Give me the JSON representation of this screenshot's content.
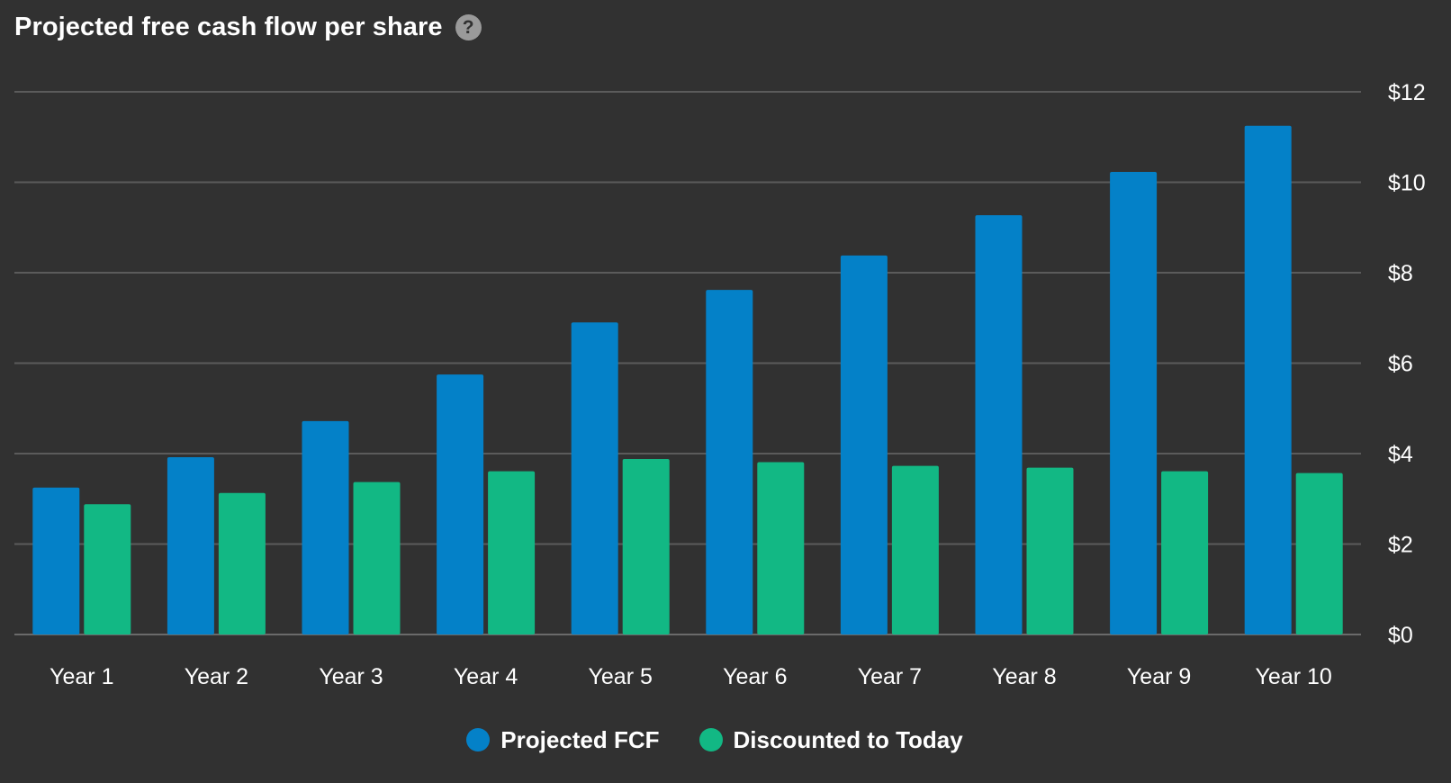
{
  "header": {
    "title": "Projected free cash flow per share",
    "help_icon": "question-circle-icon",
    "help_glyph": "?"
  },
  "colors": {
    "background": "#313131",
    "gridline": "#5b5b5b",
    "projected": "#0481c8",
    "discounted": "#12b884"
  },
  "legend": {
    "items": [
      {
        "label": "Projected FCF",
        "color": "#0481c8"
      },
      {
        "label": "Discounted to Today",
        "color": "#12b884"
      }
    ]
  },
  "chart_data": {
    "type": "bar",
    "categories": [
      "Year 1",
      "Year 2",
      "Year 3",
      "Year 4",
      "Year 5",
      "Year 6",
      "Year 7",
      "Year 8",
      "Year 9",
      "Year 10"
    ],
    "series": [
      {
        "name": "Projected FCF",
        "color": "#0481c8",
        "values": [
          3.25,
          3.92,
          4.72,
          5.75,
          6.9,
          7.62,
          8.38,
          9.27,
          10.23,
          11.25
        ]
      },
      {
        "name": "Discounted to Today",
        "color": "#12b884",
        "values": [
          2.88,
          3.13,
          3.37,
          3.61,
          3.88,
          3.81,
          3.73,
          3.69,
          3.61,
          3.57
        ]
      }
    ],
    "y_ticks": [
      "$0",
      "$2",
      "$4",
      "$6",
      "$8",
      "$10",
      "$12"
    ],
    "ylim": [
      0,
      12
    ],
    "y_axis_position": "right",
    "grid": true,
    "legend_position": "bottom-center",
    "title": "Projected free cash flow per share",
    "xlabel": "",
    "ylabel": ""
  }
}
